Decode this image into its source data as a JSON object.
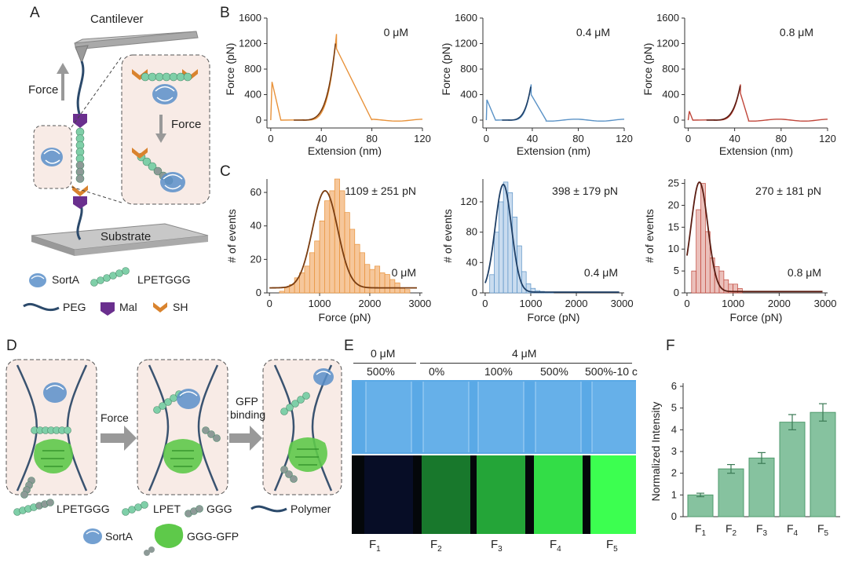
{
  "panels": {
    "A": "A",
    "B": "B",
    "C": "C",
    "D": "D",
    "E": "E",
    "F": "F"
  },
  "panelA": {
    "cantilever": "Cantilever",
    "force_left": "Force",
    "force_inset": "Force",
    "substrate": "Substrate",
    "legend": {
      "sorta": "SortA",
      "lpetggg": "LPETGGG",
      "peg": "PEG",
      "mal": "Mal",
      "sh": "SH"
    },
    "colors": {
      "bead": "#7fcfa8",
      "bead_dark": "#8d9a97",
      "mal": "#6a2f8e",
      "sh": "#d9832e",
      "protein": "#5b8fc9",
      "box": "#f8ebe6"
    }
  },
  "panelB": {
    "ylabel": "Force (pN)",
    "xlabel": "Extension (nm)",
    "yticks": [
      "0",
      "400",
      "800",
      "1200",
      "1600"
    ],
    "xticks": [
      "0",
      "40",
      "80",
      "120"
    ],
    "plots": [
      {
        "conc": "0 μM",
        "color": "#e8923a",
        "fit": "#7a3d10"
      },
      {
        "conc": "0.4 μM",
        "color": "#5a92c6",
        "fit": "#1e3f66"
      },
      {
        "conc": "0.8 μM",
        "color": "#c0463a",
        "fit": "#5a1c12"
      }
    ]
  },
  "chart_data": [
    {
      "type": "bar",
      "title": "",
      "xlabel": "Force (pN)",
      "ylabel": "# of events",
      "annotation": "1109 ± 251 pN",
      "conc": "0 μM",
      "xlim": [
        0,
        3000
      ],
      "ylim": [
        0,
        68
      ],
      "xticks": [
        "0",
        "1000",
        "2000",
        "3000"
      ],
      "yticks": [
        "0",
        "20",
        "40",
        "60"
      ],
      "bin_width": 100,
      "bin_start": 200,
      "values": [
        1,
        3,
        5,
        9,
        12,
        16,
        24,
        31,
        43,
        55,
        61,
        68,
        61,
        48,
        38,
        29,
        24,
        17,
        14,
        16,
        12,
        11,
        8,
        6,
        3,
        2
      ],
      "bar_color": "#f6c79b",
      "edge": "#e8923a",
      "fit_color": "#7a3d10",
      "fit": {
        "mean": 1109,
        "sd": 251,
        "peak": 58,
        "baseline": 3
      }
    },
    {
      "type": "bar",
      "title": "",
      "xlabel": "Force (pN)",
      "ylabel": "# of events",
      "annotation": "398 ± 179 pN",
      "conc": "0.4 μM",
      "xlim": [
        0,
        3000
      ],
      "ylim": [
        0,
        150
      ],
      "xticks": [
        "0",
        "1000",
        "2000",
        "3000"
      ],
      "yticks": [
        "0",
        "40",
        "80",
        "120"
      ],
      "bin_width": 100,
      "bin_start": 100,
      "values": [
        24,
        80,
        120,
        146,
        132,
        100,
        62,
        28,
        12,
        6,
        3,
        2,
        1,
        1
      ],
      "bar_color": "#c9dcef",
      "edge": "#5a92c6",
      "fit_color": "#1e3f66",
      "fit": {
        "mean": 398,
        "sd": 179,
        "peak": 142,
        "baseline": 1
      }
    },
    {
      "type": "bar",
      "title": "",
      "xlabel": "Force (pN)",
      "ylabel": "# of events",
      "annotation": "270 ± 181 pN",
      "conc": "0.8 μM",
      "xlim": [
        0,
        3000
      ],
      "ylim": [
        0,
        26
      ],
      "xticks": [
        "0",
        "1000",
        "2000",
        "3000"
      ],
      "yticks": [
        "0",
        "5",
        "10",
        "15",
        "20",
        "25"
      ],
      "bin_width": 100,
      "bin_start": 100,
      "values": [
        5,
        19,
        25,
        14,
        8,
        6,
        5,
        3,
        2,
        2,
        1
      ],
      "bar_color": "#ebc0bb",
      "edge": "#c0463a",
      "fit_color": "#5a1c12",
      "fit": {
        "mean": 270,
        "sd": 181,
        "peak": 25,
        "baseline": 0.3
      }
    },
    {
      "type": "bar",
      "title": "",
      "xlabel": "",
      "ylabel": "Normalized Intensity",
      "ylim": [
        0,
        6
      ],
      "yticks": [
        "0",
        "1",
        "2",
        "3",
        "4",
        "5",
        "6"
      ],
      "categories": [
        "F1",
        "F2",
        "F3",
        "F4",
        "F5"
      ],
      "values": [
        1.0,
        2.2,
        2.7,
        4.35,
        4.8
      ],
      "errors": [
        0.08,
        0.2,
        0.25,
        0.35,
        0.4
      ],
      "bar_color": "#86c29f",
      "edge": "#4f9a6c"
    }
  ],
  "panelD": {
    "force": "Force",
    "gfp_binding_1": "GFP",
    "gfp_binding_2": "binding",
    "legend": {
      "lpetggg": "LPETGGG",
      "lpet": "LPET",
      "ggg": "GGG",
      "polymer": "Polymer",
      "sorta": "SortA",
      "gggfp": "GGG-GFP"
    }
  },
  "panelE": {
    "conc0": "0 μM",
    "conc4": "4 μM",
    "lanes": [
      "500%",
      "0%",
      "100%",
      "500%",
      "500%-10 c"
    ],
    "fractions": [
      "F1",
      "F2",
      "F3",
      "F4",
      "F5"
    ],
    "brightness": [
      0.05,
      0.4,
      0.6,
      0.85,
      1.0
    ]
  }
}
